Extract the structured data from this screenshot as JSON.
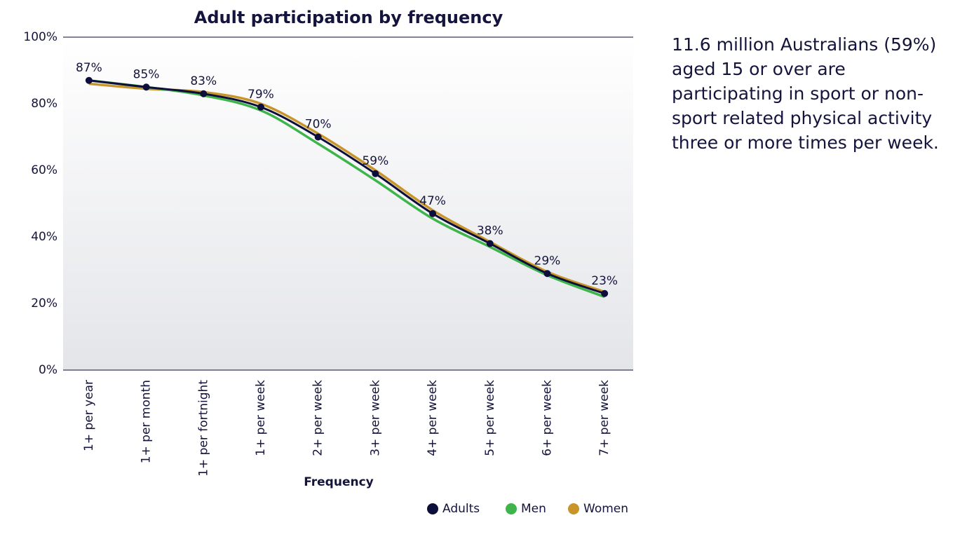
{
  "chart_data": {
    "type": "line",
    "title": "Adult participation by frequency",
    "x_label": "Frequency",
    "categories": [
      "1+ per year",
      "1+ per month",
      "1+ per fortnight",
      "1+ per week",
      "2+ per week",
      "3+ per week",
      "4+ per week",
      "5+ per week",
      "6+ per week",
      "7+ per week"
    ],
    "series": [
      {
        "name": "Adults",
        "color": "#0e0e3c",
        "markers": true,
        "data_labels": true,
        "values": [
          87,
          85,
          83,
          79,
          70,
          59,
          47,
          38,
          29,
          23
        ],
        "value_labels": [
          "87%",
          "85%",
          "83%",
          "79%",
          "70%",
          "59%",
          "47%",
          "38%",
          "29%",
          "23%"
        ]
      },
      {
        "name": "Men",
        "color": "#3db54a",
        "values": [
          87,
          85,
          82.5,
          78,
          68,
          57,
          45.5,
          37,
          28.5,
          22
        ]
      },
      {
        "name": "Women",
        "color": "#c8952a",
        "values": [
          86,
          84.5,
          83.5,
          80,
          71,
          60,
          48,
          38.5,
          29.5,
          23.5
        ]
      }
    ],
    "ylim": [
      0,
      100
    ],
    "yticks": [
      {
        "value": 0,
        "label": "0%"
      },
      {
        "value": 20,
        "label": "20%"
      },
      {
        "value": 40,
        "label": "40%"
      },
      {
        "value": 60,
        "label": "60%"
      },
      {
        "value": 80,
        "label": "80%"
      },
      {
        "value": 100,
        "label": "100%"
      }
    ],
    "legend": "bottom-right"
  },
  "side_text": "11.6 million Australians (59%) aged 15 or over are participating in sport or non-sport related physical activity three or more times per week."
}
